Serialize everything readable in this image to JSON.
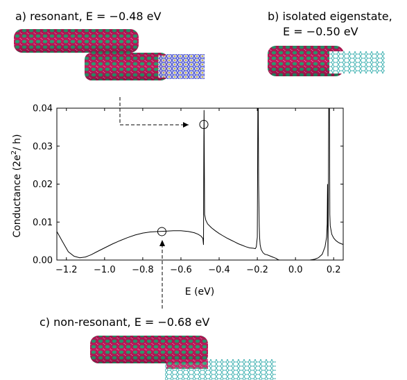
{
  "panels": {
    "a_label": "a) resonant, E = −0.48 eV",
    "b_label_line1": "b) isolated eigenstate,",
    "b_label_line2": "E = −0.50 eV",
    "c_label": "c) non-resonant, E = −0.68 eV"
  },
  "colors": {
    "magenta": "#c2185b",
    "green": "#2e9e72",
    "teal": "#43b3b3",
    "blue": "#3a46c8"
  },
  "chart_data": {
    "type": "line",
    "xlabel": "E (eV)",
    "ylabel_main": "Conductance (2e",
    "ylabel_sup": "2",
    "ylabel_end": "/ h)",
    "xlim": [
      -1.25,
      0.25
    ],
    "ylim": [
      0.0,
      0.04
    ],
    "xticks": [
      -1.2,
      -1.0,
      -0.8,
      -0.6,
      -0.4,
      -0.2,
      0.0,
      0.2
    ],
    "xtick_labels": [
      "−1.2",
      "−1.0",
      "−0.8",
      "−0.6",
      "−0.4",
      "−0.2",
      "0.0",
      "0.2"
    ],
    "yticks": [
      0.0,
      0.01,
      0.02,
      0.03,
      0.04
    ],
    "ytick_labels": [
      "0.00",
      "0.01",
      "0.02",
      "0.03",
      "0.04"
    ],
    "series": [
      {
        "x": [
          -1.25,
          -1.22,
          -1.19,
          -1.16,
          -1.13,
          -1.1,
          -1.07,
          -1.04,
          -1.0,
          -0.96,
          -0.92,
          -0.88,
          -0.84,
          -0.8,
          -0.76,
          -0.72,
          -0.68,
          -0.64,
          -0.6,
          -0.56,
          -0.53,
          -0.51,
          -0.495,
          -0.485,
          -0.482,
          -0.48,
          -0.479,
          -0.476,
          -0.47,
          -0.46,
          -0.44,
          -0.42,
          -0.4,
          -0.38,
          -0.36,
          -0.34,
          -0.32,
          -0.3,
          -0.28,
          -0.26,
          -0.24,
          -0.22,
          -0.21,
          -0.205,
          -0.2,
          -0.197,
          -0.195,
          -0.193,
          -0.19,
          -0.188,
          -0.185,
          -0.18,
          -0.17,
          -0.16,
          -0.15,
          -0.14,
          -0.13,
          -0.12,
          -0.11,
          -0.1,
          -0.095,
          -0.09,
          -0.085,
          -0.08,
          -0.075,
          0.075,
          0.1,
          0.12,
          0.14,
          0.155,
          0.163,
          0.166,
          0.168,
          0.17,
          0.172,
          0.174,
          0.176,
          0.178,
          0.18,
          0.182,
          0.19,
          0.2,
          0.21,
          0.22,
          0.23,
          0.24,
          0.25
        ],
        "y": [
          0.0075,
          0.0048,
          0.0022,
          0.001,
          0.0006,
          0.0008,
          0.0014,
          0.0022,
          0.0032,
          0.0042,
          0.0051,
          0.0059,
          0.0066,
          0.0071,
          0.0074,
          0.0075,
          0.0076,
          0.0077,
          0.0077,
          0.0075,
          0.0072,
          0.0068,
          0.0063,
          0.0057,
          0.004,
          0.03,
          0.0395,
          0.012,
          0.0105,
          0.0095,
          0.0085,
          0.0077,
          0.007,
          0.0064,
          0.0058,
          0.0053,
          0.0048,
          0.0043,
          0.0039,
          0.0035,
          0.0032,
          0.0031,
          0.003,
          0.0035,
          0.006,
          0.04,
          0.04,
          0.02,
          0.009,
          0.006,
          0.004,
          0.0028,
          0.0019,
          0.0015,
          0.0014,
          0.0012,
          0.001,
          0.0008,
          0.0006,
          0.0004,
          0.0002,
          0.0001,
          0.0,
          0.0,
          0.0,
          0.0,
          0.0002,
          0.0006,
          0.0015,
          0.0035,
          0.006,
          0.0095,
          0.02,
          0.001,
          0.015,
          0.04,
          0.04,
          0.04,
          0.012,
          0.009,
          0.0068,
          0.0058,
          0.0052,
          0.0048,
          0.0045,
          0.0043,
          0.0041
        ]
      }
    ],
    "markers": [
      {
        "x": -0.48,
        "y": 0.0357
      },
      {
        "x": -0.7,
        "y": 0.0075
      }
    ]
  }
}
